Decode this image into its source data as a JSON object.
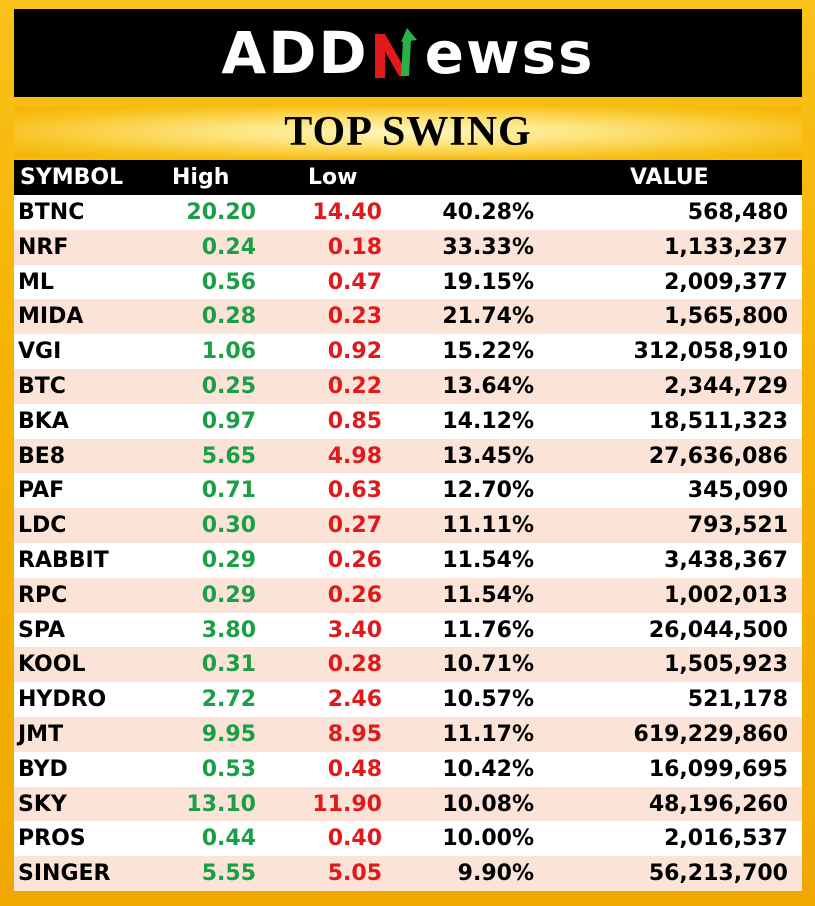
{
  "brand": {
    "logo_text_left": "ADD",
    "logo_text_right": "ewss"
  },
  "title": "TOP SWING",
  "columns": {
    "symbol": "SYMBOL",
    "high": "High",
    "low": "Low",
    "pct": "",
    "value": "VALUE"
  },
  "colors": {
    "high": "#1a9e46",
    "low": "#e0191b",
    "background": "#f6b200",
    "header": "#000000",
    "row_alt": "#fbe3d8"
  },
  "rows": [
    {
      "symbol": "BTNC",
      "high": "20.20",
      "low": "14.40",
      "pct": "40.28%",
      "value": "568,480"
    },
    {
      "symbol": "NRF",
      "high": "0.24",
      "low": "0.18",
      "pct": "33.33%",
      "value": "1,133,237"
    },
    {
      "symbol": "ML",
      "high": "0.56",
      "low": "0.47",
      "pct": "19.15%",
      "value": "2,009,377"
    },
    {
      "symbol": "MIDA",
      "high": "0.28",
      "low": "0.23",
      "pct": "21.74%",
      "value": "1,565,800"
    },
    {
      "symbol": "VGI",
      "high": "1.06",
      "low": "0.92",
      "pct": "15.22%",
      "value": "312,058,910"
    },
    {
      "symbol": "BTC",
      "high": "0.25",
      "low": "0.22",
      "pct": "13.64%",
      "value": "2,344,729"
    },
    {
      "symbol": "BKA",
      "high": "0.97",
      "low": "0.85",
      "pct": "14.12%",
      "value": "18,511,323"
    },
    {
      "symbol": "BE8",
      "high": "5.65",
      "low": "4.98",
      "pct": "13.45%",
      "value": "27,636,086"
    },
    {
      "symbol": "PAF",
      "high": "0.71",
      "low": "0.63",
      "pct": "12.70%",
      "value": "345,090"
    },
    {
      "symbol": "LDC",
      "high": "0.30",
      "low": "0.27",
      "pct": "11.11%",
      "value": "793,521"
    },
    {
      "symbol": "RABBIT",
      "high": "0.29",
      "low": "0.26",
      "pct": "11.54%",
      "value": "3,438,367"
    },
    {
      "symbol": "RPC",
      "high": "0.29",
      "low": "0.26",
      "pct": "11.54%",
      "value": "1,002,013"
    },
    {
      "symbol": "SPA",
      "high": "3.80",
      "low": "3.40",
      "pct": "11.76%",
      "value": "26,044,500"
    },
    {
      "symbol": "KOOL",
      "high": "0.31",
      "low": "0.28",
      "pct": "10.71%",
      "value": "1,505,923"
    },
    {
      "symbol": "HYDRO",
      "high": "2.72",
      "low": "2.46",
      "pct": "10.57%",
      "value": "521,178"
    },
    {
      "symbol": "JMT",
      "high": "9.95",
      "low": "8.95",
      "pct": "11.17%",
      "value": "619,229,860"
    },
    {
      "symbol": "BYD",
      "high": "0.53",
      "low": "0.48",
      "pct": "10.42%",
      "value": "16,099,695"
    },
    {
      "symbol": "SKY",
      "high": "13.10",
      "low": "11.90",
      "pct": "10.08%",
      "value": "48,196,260"
    },
    {
      "symbol": "PROS",
      "high": "0.44",
      "low": "0.40",
      "pct": "10.00%",
      "value": "2,016,537"
    },
    {
      "symbol": "SINGER",
      "high": "5.55",
      "low": "5.05",
      "pct": "9.90%",
      "value": "56,213,700"
    }
  ]
}
